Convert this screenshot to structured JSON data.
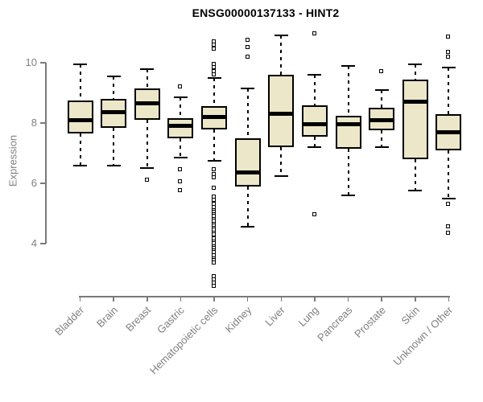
{
  "chart_data": {
    "type": "boxplot",
    "title": "ENSG00000137133 - HINT2",
    "ylabel": "Expression",
    "xlabel": "",
    "ylim": [
      4,
      10
    ],
    "yticks": [
      10,
      8,
      6,
      4
    ],
    "grid": false,
    "legend": false,
    "categories": [
      "Bladder",
      "Brain",
      "Breast",
      "Gastric",
      "Hematopoietic cells",
      "Kidney",
      "Liver",
      "Lung",
      "Pancreas",
      "Prostate",
      "Skin",
      "Unknown / Other"
    ],
    "series": [
      {
        "name": "Bladder",
        "whislo": 6.6,
        "q1": 7.65,
        "med": 8.1,
        "q3": 8.75,
        "whishi": 9.95,
        "outliers": []
      },
      {
        "name": "Brain",
        "whislo": 6.6,
        "q1": 7.85,
        "med": 8.35,
        "q3": 8.8,
        "whishi": 9.55,
        "outliers": []
      },
      {
        "name": "Breast",
        "whislo": 6.5,
        "q1": 8.1,
        "med": 8.65,
        "q3": 9.15,
        "whishi": 9.8,
        "outliers": [
          6.1
        ]
      },
      {
        "name": "Gastric",
        "whislo": 6.85,
        "q1": 7.5,
        "med": 7.9,
        "q3": 8.15,
        "whishi": 8.85,
        "outliers": [
          9.2,
          6.45,
          6.05,
          5.75
        ]
      },
      {
        "name": "Hematopoietic cells",
        "whislo": 6.75,
        "q1": 7.8,
        "med": 8.2,
        "q3": 8.55,
        "whishi": 9.5,
        "outliers": [
          10.7,
          10.6,
          10.45,
          9.95,
          9.85,
          9.7,
          9.6,
          6.45,
          6.3,
          6.2,
          5.85,
          5.55,
          5.45,
          5.3,
          5.2,
          5.1,
          5.05,
          4.95,
          4.9,
          4.8,
          4.75,
          4.65,
          4.6,
          4.5,
          4.45,
          4.35,
          4.3,
          4.2,
          4.15,
          4.05,
          4.0,
          3.9,
          3.85,
          3.75,
          3.7,
          3.6,
          3.5,
          3.45,
          3.35,
          2.9,
          2.8,
          2.7,
          2.6
        ]
      },
      {
        "name": "Kidney",
        "whislo": 4.55,
        "q1": 5.9,
        "med": 6.35,
        "q3": 7.5,
        "whishi": 9.15,
        "outliers": [
          10.75,
          10.5,
          10.2
        ]
      },
      {
        "name": "Liver",
        "whislo": 6.25,
        "q1": 7.2,
        "med": 8.3,
        "q3": 9.6,
        "whishi": 10.9,
        "outliers": []
      },
      {
        "name": "Lung",
        "whislo": 7.2,
        "q1": 7.55,
        "med": 7.95,
        "q3": 8.6,
        "whishi": 9.6,
        "outliers": [
          10.95,
          4.95
        ]
      },
      {
        "name": "Pancreas",
        "whislo": 5.6,
        "q1": 7.15,
        "med": 7.95,
        "q3": 8.25,
        "whishi": 9.9,
        "outliers": []
      },
      {
        "name": "Prostate",
        "whislo": 7.2,
        "q1": 7.75,
        "med": 8.1,
        "q3": 8.5,
        "whishi": 9.1,
        "outliers": [
          9.7
        ]
      },
      {
        "name": "Skin",
        "whislo": 5.75,
        "q1": 6.8,
        "med": 8.7,
        "q3": 9.45,
        "whishi": 9.95,
        "outliers": []
      },
      {
        "name": "Unknown / Other",
        "whislo": 5.5,
        "q1": 7.1,
        "med": 7.7,
        "q3": 8.3,
        "whishi": 9.85,
        "outliers": [
          10.85,
          10.35,
          10.2,
          5.3,
          4.55,
          4.35
        ]
      }
    ]
  },
  "colors": {
    "box_fill": "#EDE7C9",
    "box_border": "#000000",
    "median": "#000000",
    "whisker": "#000000",
    "axis": "#7a7a7a",
    "tick_label": "#808080",
    "title": "#000000",
    "background": "#FFFFFF"
  }
}
